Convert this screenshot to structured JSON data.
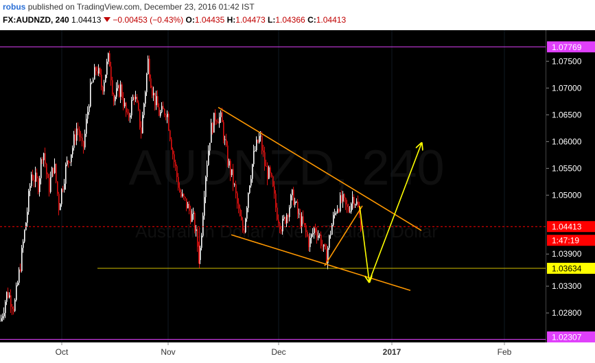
{
  "header": {
    "user": "robus",
    "published_text": "published on TradingView.com, December 23, 2016 01:42 IST",
    "symbol": "FX:AUDNZD, 240",
    "last": "1.04413",
    "change": "−0.00453 (−0.43%)",
    "open_label": "O:",
    "open": "1.04435",
    "high_label": "H:",
    "high": "1.04473",
    "low_label": "L:",
    "low": "1.04366",
    "close_label": "C:",
    "close": "1.04413"
  },
  "watermark": "AUDNZD, 240",
  "subwatermark": "Australian Dollar / New Zealand Dollar",
  "chart_data": {
    "type": "candlestick",
    "y_ticks": [
      "1.07500",
      "1.07000",
      "1.06500",
      "1.06000",
      "1.05500",
      "1.05000",
      "1.03900",
      "1.03300",
      "1.02800"
    ],
    "y_range": [
      1.0225,
      1.0808
    ],
    "x_ticks": [
      "Oct",
      "Nov",
      "Dec",
      "2017",
      "Feb"
    ],
    "price_labels": [
      {
        "text": "1.07769",
        "value": 1.07769,
        "color": "#e040fb"
      },
      {
        "text": "1.04413",
        "value": 1.04413,
        "color": "#ff0000"
      },
      {
        "text": "1:47:19",
        "value": 1.04413,
        "color": "#ff0000"
      },
      {
        "text": "1.03634",
        "value": 1.03634,
        "color": "#ffff00"
      },
      {
        "text": "1.02307",
        "value": 1.02307,
        "color": "#e040fb"
      }
    ],
    "horizontal_lines": [
      {
        "value": 1.07769,
        "color": "#e040fb"
      },
      {
        "value": 1.02307,
        "color": "#e040fb"
      },
      {
        "value": 1.04413,
        "color": "#ff0000",
        "style": "dashed"
      },
      {
        "value": 1.03634,
        "color": "#d4c000"
      }
    ],
    "price_path": [
      [
        0,
        1.0265
      ],
      [
        10,
        1.032
      ],
      [
        20,
        1.029
      ],
      [
        30,
        1.038
      ],
      [
        38,
        1.046
      ],
      [
        45,
        1.054
      ],
      [
        55,
        1.052
      ],
      [
        62,
        1.059
      ],
      [
        70,
        1.051
      ],
      [
        78,
        1.056
      ],
      [
        85,
        1.048
      ],
      [
        95,
        1.055
      ],
      [
        105,
        1.059
      ],
      [
        112,
        1.063
      ],
      [
        120,
        1.058
      ],
      [
        130,
        1.069
      ],
      [
        140,
        1.074
      ],
      [
        148,
        1.07
      ],
      [
        158,
        1.076
      ],
      [
        165,
        1.068
      ],
      [
        175,
        1.07
      ],
      [
        185,
        1.064
      ],
      [
        195,
        1.069
      ],
      [
        205,
        1.062
      ],
      [
        215,
        1.075
      ],
      [
        222,
        1.069
      ],
      [
        232,
        1.065
      ],
      [
        242,
        1.066
      ],
      [
        252,
        1.057
      ],
      [
        262,
        1.05
      ],
      [
        272,
        1.048
      ],
      [
        282,
        1.045
      ],
      [
        290,
        1.038
      ],
      [
        298,
        1.053
      ],
      [
        306,
        1.062
      ],
      [
        314,
        1.065
      ],
      [
        322,
        1.064
      ],
      [
        330,
        1.057
      ],
      [
        340,
        1.052
      ],
      [
        348,
        1.046
      ],
      [
        354,
        1.043
      ],
      [
        362,
        1.052
      ],
      [
        370,
        1.058
      ],
      [
        378,
        1.061
      ],
      [
        386,
        1.055
      ],
      [
        394,
        1.053
      ],
      [
        402,
        1.047
      ],
      [
        410,
        1.044
      ],
      [
        418,
        1.047
      ],
      [
        426,
        1.05
      ],
      [
        434,
        1.046
      ],
      [
        442,
        1.044
      ],
      [
        450,
        1.041
      ],
      [
        458,
        1.044
      ],
      [
        466,
        1.042
      ],
      [
        474,
        1.038
      ],
      [
        482,
        1.044
      ],
      [
        490,
        1.048
      ],
      [
        498,
        1.049
      ],
      [
        506,
        1.047
      ],
      [
        514,
        1.05
      ],
      [
        520,
        1.048
      ],
      [
        526,
        1.0441
      ]
    ],
    "candle_range": [
      1.025,
      1.0765
    ],
    "annotations": [
      {
        "type": "trendline",
        "color": "#ff9800",
        "from": [
          318,
          1.0664
        ],
        "to": [
          614,
          1.0434
        ]
      },
      {
        "type": "trendline",
        "color": "#ff9800",
        "from": [
          337,
          1.0426
        ],
        "to": [
          598,
          1.0322
        ]
      },
      {
        "type": "trendline",
        "color": "#ff9800",
        "from": [
          473,
          1.0368
        ],
        "to": [
          528,
          1.048
        ]
      },
      {
        "type": "arrow",
        "color": "#ffff00",
        "from": [
          524,
          1.048
        ],
        "to": [
          538,
          1.0339
        ]
      },
      {
        "type": "arrow",
        "color": "#ffff00",
        "from": [
          538,
          1.0339
        ],
        "to": [
          614,
          1.0596
        ]
      }
    ],
    "horizontal_segment": {
      "value": 1.03634,
      "x_from": 142,
      "x_to": 795
    }
  }
}
